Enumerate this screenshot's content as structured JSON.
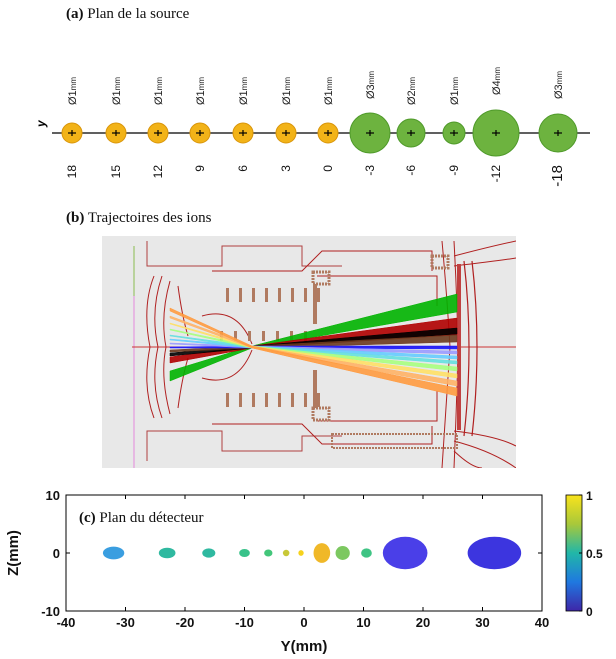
{
  "panel_a": {
    "tag": "(a)",
    "title": "Plan de la source",
    "axis_label": "y",
    "sources": [
      {
        "label": "Ø1",
        "unit": "mm",
        "y": "18",
        "color": "#f2b318",
        "kind": "small"
      },
      {
        "label": "Ø1",
        "unit": "mm",
        "y": "15",
        "color": "#f2b318",
        "kind": "small"
      },
      {
        "label": "Ø1",
        "unit": "mm",
        "y": "12",
        "color": "#f2b318",
        "kind": "small"
      },
      {
        "label": "Ø1",
        "unit": "mm",
        "y": "9",
        "color": "#f2b318",
        "kind": "small"
      },
      {
        "label": "Ø1",
        "unit": "mm",
        "y": "6",
        "color": "#f2b318",
        "kind": "small"
      },
      {
        "label": "Ø1",
        "unit": "mm",
        "y": "3",
        "color": "#f2b318",
        "kind": "small"
      },
      {
        "label": "Ø1",
        "unit": "mm",
        "y": "0",
        "color": "#f2b318",
        "kind": "small"
      },
      {
        "label": "Ø3",
        "unit": "mm",
        "y": "-3",
        "color": "#6db33f",
        "kind": "d3"
      },
      {
        "label": "Ø2",
        "unit": "mm",
        "y": "-6",
        "color": "#6db33f",
        "kind": "d2"
      },
      {
        "label": "Ø1",
        "unit": "mm",
        "y": "-9",
        "color": "#6db33f",
        "kind": "d1"
      },
      {
        "label": "Ø4",
        "unit": "mm",
        "y": "-12",
        "color": "#6db33f",
        "kind": "d4"
      },
      {
        "label": "Ø3",
        "unit": "mm",
        "y": "-18",
        "color": "#6db33f",
        "kind": "d3b"
      }
    ]
  },
  "panel_b": {
    "tag": "(b)",
    "title": "Trajectoires des ions",
    "beam_colors": [
      "#00b400",
      "#b00000",
      "#000000",
      "#6b3a1e",
      "#1a1aff",
      "#9b9bff",
      "#66ccff",
      "#66e0e0",
      "#a8ff80",
      "#ffe066",
      "#ffb366",
      "#ff9b40"
    ]
  },
  "panel_c": {
    "tag": "(c)",
    "title": "Plan du détecteur",
    "chart_data": {
      "type": "scatter",
      "xlabel": "Y(mm)",
      "ylabel": "Z(mm)",
      "xlim": [
        -40,
        40
      ],
      "ylim": [
        -10,
        10
      ],
      "xticks": [
        "-40",
        "-30",
        "-20",
        "-10",
        "0",
        "10",
        "20",
        "30",
        "40"
      ],
      "yticks": [
        "10",
        "0",
        "-10"
      ],
      "spots": [
        {
          "y": -32,
          "z": 0,
          "w": 3.6,
          "h": 2.2,
          "color": "#3a9ee0"
        },
        {
          "y": -23,
          "z": 0,
          "w": 2.8,
          "h": 1.8,
          "color": "#2fb9a0"
        },
        {
          "y": -16,
          "z": 0,
          "w": 2.2,
          "h": 1.6,
          "color": "#2fb9a0"
        },
        {
          "y": -10,
          "z": 0,
          "w": 1.8,
          "h": 1.4,
          "color": "#39c28a"
        },
        {
          "y": -6,
          "z": 0,
          "w": 1.4,
          "h": 1.2,
          "color": "#43c67a"
        },
        {
          "y": -3,
          "z": 0,
          "w": 1.1,
          "h": 1.1,
          "color": "#c8c838"
        },
        {
          "y": -0.5,
          "z": 0,
          "w": 0.9,
          "h": 1.0,
          "color": "#f6d21c"
        },
        {
          "y": 3,
          "z": 0,
          "w": 2.8,
          "h": 3.4,
          "color": "#f0b828"
        },
        {
          "y": 6.5,
          "z": 0,
          "w": 2.4,
          "h": 2.4,
          "color": "#7cc860"
        },
        {
          "y": 10.5,
          "z": 0,
          "w": 1.8,
          "h": 1.6,
          "color": "#3fc484"
        },
        {
          "y": 17,
          "z": 0,
          "w": 7.5,
          "h": 5.6,
          "color": "#4a3fe8"
        },
        {
          "y": 32,
          "z": 0,
          "w": 9,
          "h": 5.6,
          "color": "#3c35df"
        }
      ],
      "colorbar": {
        "ticks": [
          "1",
          "0.5",
          "0"
        ],
        "min": 0,
        "max": 1
      }
    }
  }
}
